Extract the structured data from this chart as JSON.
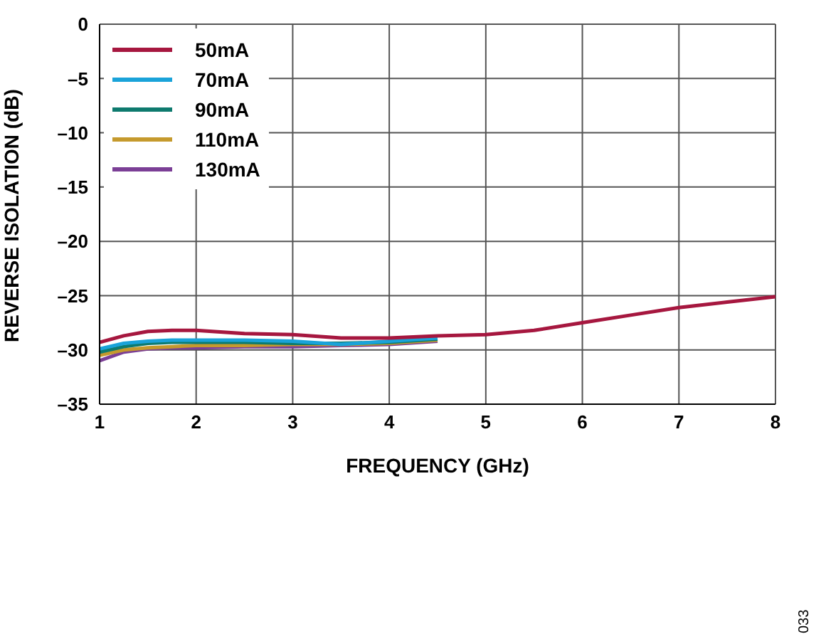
{
  "chart_data": {
    "type": "line",
    "xlabel": "FREQUENCY (GHz)",
    "ylabel": "REVERSE ISOLATION (dB)",
    "xlim": [
      1,
      8
    ],
    "xticks": [
      1,
      2,
      3,
      4,
      5,
      6,
      7,
      8
    ],
    "ylim": [
      -35,
      0
    ],
    "yticks": [
      {
        "value": -35,
        "label": "–35"
      },
      {
        "value": -30,
        "label": "–30"
      },
      {
        "value": -25,
        "label": "–25"
      },
      {
        "value": -20,
        "label": "–20"
      },
      {
        "value": -15,
        "label": "–15"
      },
      {
        "value": -10,
        "label": "–10"
      },
      {
        "value": -5,
        "label": "–5"
      },
      0
    ],
    "grid": true,
    "legend": "top left",
    "marker": "none",
    "line_style": "solid",
    "x": [
      1,
      1.25,
      1.5,
      1.75,
      2,
      2.5,
      3,
      3.5,
      4,
      4.5,
      5,
      5.5,
      6,
      6.5,
      7,
      7.5,
      8
    ],
    "series": [
      {
        "name": "50mA",
        "color": "#a6173f",
        "values": [
          -29.3,
          -28.7,
          -28.3,
          -28.2,
          -28.2,
          -28.5,
          -28.6,
          -28.9,
          -28.9,
          -28.7,
          -28.6,
          -28.2,
          -27.5,
          -26.8,
          -26.1,
          -25.6,
          -25.1
        ]
      },
      {
        "name": "70mA",
        "color": "#1aa3d9",
        "values": [
          -29.9,
          -29.4,
          -29.2,
          -29.1,
          -29.1,
          -29.1,
          -29.2,
          -29.5,
          -29.2,
          -28.9,
          null,
          null,
          null,
          null,
          null,
          null,
          null
        ]
      },
      {
        "name": "90mA",
        "color": "#0e7a6e",
        "values": [
          -30.2,
          -29.7,
          -29.4,
          -29.3,
          -29.3,
          -29.3,
          -29.4,
          -29.4,
          -29.3,
          -29.0,
          null,
          null,
          null,
          null,
          null,
          null,
          null
        ]
      },
      {
        "name": "110mA",
        "color": "#c59a2d",
        "values": [
          -30.5,
          -30.0,
          -29.8,
          -29.7,
          -29.6,
          -29.6,
          -29.5,
          -29.5,
          -29.4,
          -29.1,
          null,
          null,
          null,
          null,
          null,
          null,
          null
        ]
      },
      {
        "name": "130mA",
        "color": "#7b3f96",
        "values": [
          -31.0,
          -30.2,
          -29.9,
          -29.8,
          -29.8,
          -29.7,
          -29.7,
          -29.6,
          -29.5,
          -29.2,
          null,
          null,
          null,
          null,
          null,
          null,
          null
        ]
      }
    ],
    "annotations": [
      "033"
    ]
  }
}
